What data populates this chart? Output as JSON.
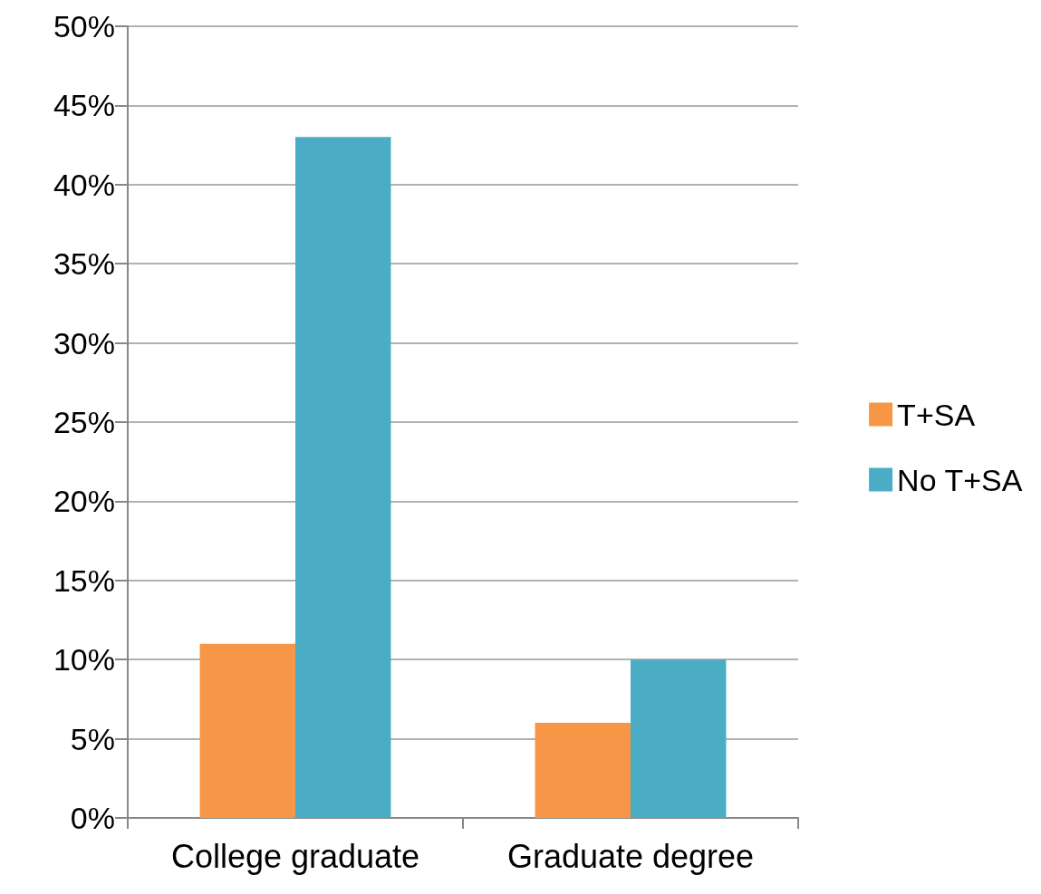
{
  "chart_data": {
    "type": "bar",
    "categories": [
      "College graduate",
      "Graduate degree"
    ],
    "series": [
      {
        "name": "T+SA",
        "color": "#f79646",
        "values": [
          11,
          6
        ]
      },
      {
        "name": "No T+SA",
        "color": "#4bacc6",
        "values": [
          43,
          10
        ]
      }
    ],
    "ylim": [
      0,
      50
    ],
    "yticks": [
      {
        "value": 0,
        "label": "0%"
      },
      {
        "value": 5,
        "label": "5%"
      },
      {
        "value": 10,
        "label": "10%"
      },
      {
        "value": 15,
        "label": "15%"
      },
      {
        "value": 20,
        "label": "20%"
      },
      {
        "value": 25,
        "label": "25%"
      },
      {
        "value": 30,
        "label": "30%"
      },
      {
        "value": 35,
        "label": "35%"
      },
      {
        "value": 40,
        "label": "40%"
      },
      {
        "value": 45,
        "label": "45%"
      },
      {
        "value": 50,
        "label": "50%"
      }
    ],
    "grid": "y",
    "legend": "right"
  }
}
